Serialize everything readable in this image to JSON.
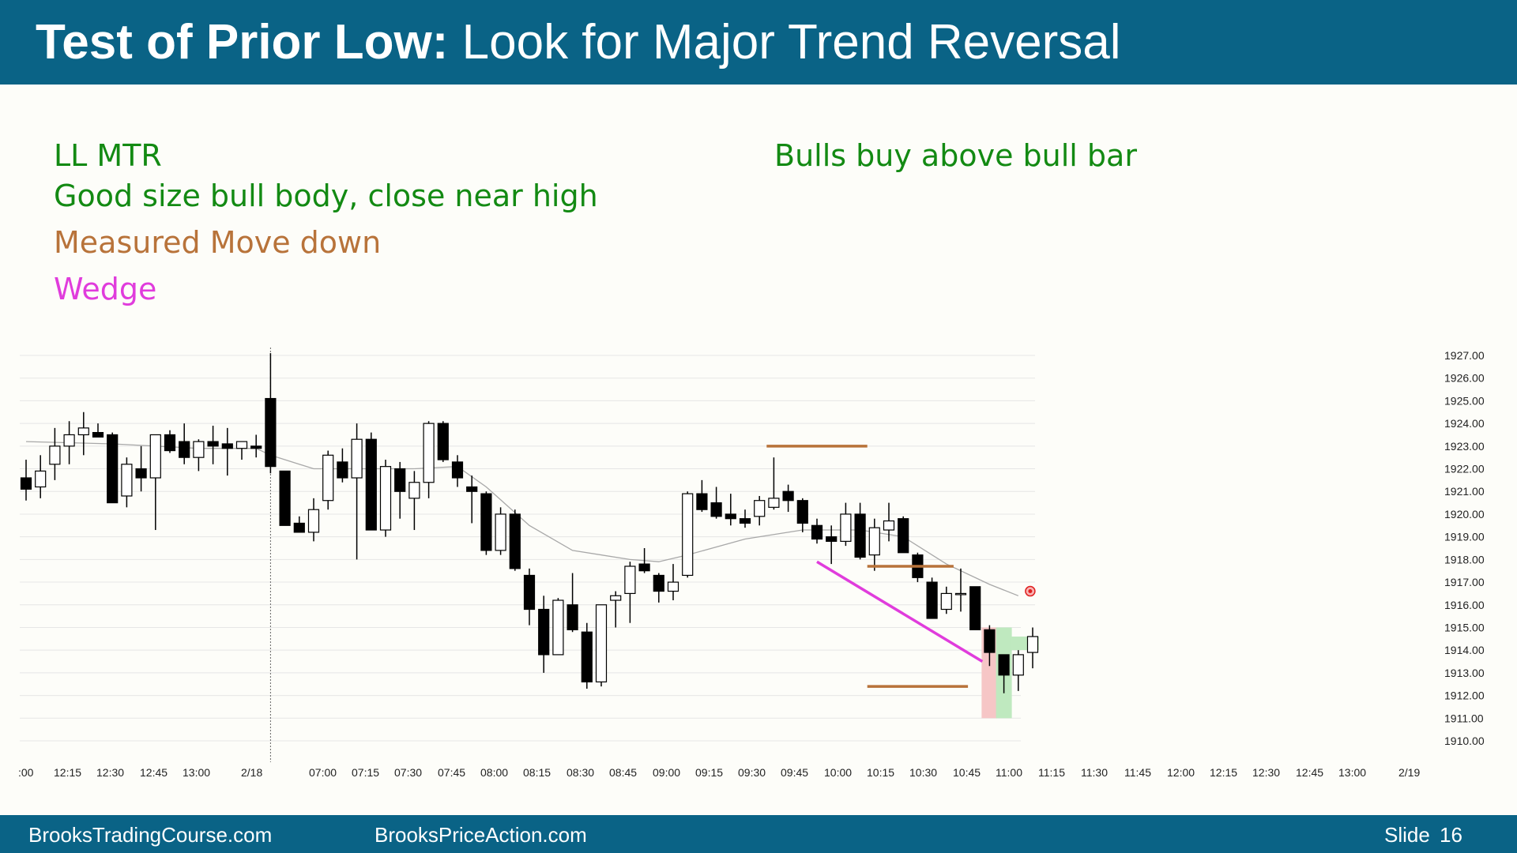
{
  "header": {
    "title_bold": "Test of Prior Low:",
    "title_rest": " Look for Major Trend Reversal"
  },
  "annotations": {
    "ll_mtr": "LL MTR",
    "bull_body": "Good size bull body, close near high",
    "measured_move": "Measured Move down",
    "wedge": "Wedge",
    "bulls_buy": "Bulls buy above bull bar"
  },
  "colors": {
    "header_bg": "#0a6386",
    "green_text": "#138a13",
    "brown": "#b8733a",
    "magenta": "#e03cdc",
    "ema": "#a8a8a8",
    "bear_highlight": "#f6c6c6",
    "bull_highlight": "#bfe9bf",
    "signal_dot": "#e02020"
  },
  "footer": {
    "site1": "BrooksTradingCourse.com",
    "site2": "BrooksPriceAction.com",
    "slide_label": "Slide",
    "slide_number": "16"
  },
  "chart_data": {
    "type": "candlestick",
    "y_ticks": [
      "1927.00",
      "1926.00",
      "1925.00",
      "1924.00",
      "1923.00",
      "1922.00",
      "1921.00",
      "1920.00",
      "1919.00",
      "1918.00",
      "1917.00",
      "1916.00",
      "1915.00",
      "1914.00",
      "1913.00",
      "1912.00",
      "1911.00",
      "1910.00"
    ],
    "ylim": [
      1910,
      1927
    ],
    "x_labels": [
      ":00",
      "12:15",
      "12:30",
      "12:45",
      "13:00",
      "2/18",
      "07:00",
      "07:15",
      "07:30",
      "07:45",
      "08:00",
      "08:15",
      "08:30",
      "08:45",
      "09:00",
      "09:15",
      "09:30",
      "09:45",
      "10:00",
      "10:15",
      "10:30",
      "10:45",
      "11:00",
      "11:15",
      "11:30",
      "11:45",
      "12:00",
      "12:15",
      "12:30",
      "12:45",
      "13:00",
      "2/19"
    ],
    "grid": "horizontal",
    "candles": [
      {
        "o": 1921.6,
        "h": 1922.4,
        "l": 1920.6,
        "c": 1921.1
      },
      {
        "o": 1921.2,
        "h": 1922.6,
        "l": 1920.7,
        "c": 1921.9
      },
      {
        "o": 1922.2,
        "h": 1923.8,
        "l": 1921.5,
        "c": 1923.0
      },
      {
        "o": 1923.0,
        "h": 1924.1,
        "l": 1922.2,
        "c": 1923.5
      },
      {
        "o": 1923.5,
        "h": 1924.5,
        "l": 1922.6,
        "c": 1923.8
      },
      {
        "o": 1923.6,
        "h": 1924.0,
        "l": 1923.4,
        "c": 1923.4
      },
      {
        "o": 1923.5,
        "h": 1923.6,
        "l": 1920.5,
        "c": 1920.5
      },
      {
        "o": 1920.8,
        "h": 1922.5,
        "l": 1920.3,
        "c": 1922.2
      },
      {
        "o": 1922.0,
        "h": 1923.0,
        "l": 1921.0,
        "c": 1921.6
      },
      {
        "o": 1921.6,
        "h": 1923.5,
        "l": 1919.3,
        "c": 1923.5
      },
      {
        "o": 1923.5,
        "h": 1923.7,
        "l": 1922.7,
        "c": 1922.8
      },
      {
        "o": 1923.2,
        "h": 1924.0,
        "l": 1922.2,
        "c": 1922.5
      },
      {
        "o": 1922.5,
        "h": 1923.3,
        "l": 1921.9,
        "c": 1923.2
      },
      {
        "o": 1923.2,
        "h": 1923.9,
        "l": 1922.2,
        "c": 1923.0
      },
      {
        "o": 1923.1,
        "h": 1923.8,
        "l": 1921.7,
        "c": 1922.9
      },
      {
        "o": 1922.9,
        "h": 1923.2,
        "l": 1922.4,
        "c": 1923.2
      },
      {
        "o": 1923.0,
        "h": 1923.5,
        "l": 1922.5,
        "c": 1922.9
      },
      {
        "o": 1925.1,
        "h": 1927.1,
        "l": 1921.8,
        "c": 1922.1
      },
      {
        "o": 1921.9,
        "h": 1921.9,
        "l": 1919.5,
        "c": 1919.5
      },
      {
        "o": 1919.6,
        "h": 1919.9,
        "l": 1919.2,
        "c": 1919.2
      },
      {
        "o": 1919.2,
        "h": 1920.7,
        "l": 1918.8,
        "c": 1920.2
      },
      {
        "o": 1920.6,
        "h": 1922.8,
        "l": 1920.2,
        "c": 1922.6
      },
      {
        "o": 1922.3,
        "h": 1922.9,
        "l": 1921.4,
        "c": 1921.6
      },
      {
        "o": 1921.6,
        "h": 1924.0,
        "l": 1918.0,
        "c": 1923.3
      },
      {
        "o": 1923.3,
        "h": 1923.6,
        "l": 1919.3,
        "c": 1919.3
      },
      {
        "o": 1919.3,
        "h": 1922.4,
        "l": 1919.0,
        "c": 1922.1
      },
      {
        "o": 1922.0,
        "h": 1922.3,
        "l": 1919.8,
        "c": 1921.0
      },
      {
        "o": 1920.7,
        "h": 1921.9,
        "l": 1919.3,
        "c": 1921.4
      },
      {
        "o": 1921.4,
        "h": 1924.1,
        "l": 1920.7,
        "c": 1924.0
      },
      {
        "o": 1924.0,
        "h": 1924.1,
        "l": 1922.3,
        "c": 1922.4
      },
      {
        "o": 1922.3,
        "h": 1922.6,
        "l": 1921.2,
        "c": 1921.6
      },
      {
        "o": 1921.2,
        "h": 1921.7,
        "l": 1919.6,
        "c": 1921.0
      },
      {
        "o": 1920.9,
        "h": 1921.0,
        "l": 1918.2,
        "c": 1918.4
      },
      {
        "o": 1918.4,
        "h": 1920.3,
        "l": 1918.2,
        "c": 1920.0
      },
      {
        "o": 1920.0,
        "h": 1920.2,
        "l": 1917.5,
        "c": 1917.6
      },
      {
        "o": 1917.3,
        "h": 1917.6,
        "l": 1915.1,
        "c": 1915.8
      },
      {
        "o": 1915.8,
        "h": 1916.4,
        "l": 1913.0,
        "c": 1913.8
      },
      {
        "o": 1913.8,
        "h": 1916.3,
        "l": 1913.8,
        "c": 1916.2
      },
      {
        "o": 1916.0,
        "h": 1917.4,
        "l": 1914.8,
        "c": 1914.9
      },
      {
        "o": 1914.8,
        "h": 1915.2,
        "l": 1912.3,
        "c": 1912.6
      },
      {
        "o": 1912.6,
        "h": 1916.0,
        "l": 1912.4,
        "c": 1916.0
      },
      {
        "o": 1916.2,
        "h": 1916.6,
        "l": 1915.0,
        "c": 1916.4
      },
      {
        "o": 1916.5,
        "h": 1917.9,
        "l": 1915.2,
        "c": 1917.7
      },
      {
        "o": 1917.8,
        "h": 1918.5,
        "l": 1917.4,
        "c": 1917.5
      },
      {
        "o": 1917.3,
        "h": 1917.4,
        "l": 1916.1,
        "c": 1916.6
      },
      {
        "o": 1916.6,
        "h": 1917.8,
        "l": 1916.2,
        "c": 1917.0
      },
      {
        "o": 1917.3,
        "h": 1921.0,
        "l": 1917.2,
        "c": 1920.9
      },
      {
        "o": 1920.9,
        "h": 1921.5,
        "l": 1920.1,
        "c": 1920.2
      },
      {
        "o": 1920.5,
        "h": 1921.2,
        "l": 1919.8,
        "c": 1919.9
      },
      {
        "o": 1920.0,
        "h": 1920.9,
        "l": 1919.5,
        "c": 1919.8
      },
      {
        "o": 1919.8,
        "h": 1920.2,
        "l": 1919.4,
        "c": 1919.6
      },
      {
        "o": 1919.9,
        "h": 1920.8,
        "l": 1919.5,
        "c": 1920.6
      },
      {
        "o": 1920.3,
        "h": 1922.5,
        "l": 1920.2,
        "c": 1920.7
      },
      {
        "o": 1921.0,
        "h": 1921.3,
        "l": 1920.1,
        "c": 1920.6
      },
      {
        "o": 1920.6,
        "h": 1920.7,
        "l": 1919.2,
        "c": 1919.6
      },
      {
        "o": 1919.5,
        "h": 1919.8,
        "l": 1918.7,
        "c": 1918.9
      },
      {
        "o": 1919.0,
        "h": 1919.5,
        "l": 1917.8,
        "c": 1918.8
      },
      {
        "o": 1918.8,
        "h": 1920.5,
        "l": 1918.6,
        "c": 1920.0
      },
      {
        "o": 1920.0,
        "h": 1920.5,
        "l": 1918.0,
        "c": 1918.1
      },
      {
        "o": 1918.2,
        "h": 1919.8,
        "l": 1917.5,
        "c": 1919.4
      },
      {
        "o": 1919.3,
        "h": 1920.5,
        "l": 1918.8,
        "c": 1919.7
      },
      {
        "o": 1919.8,
        "h": 1919.9,
        "l": 1918.3,
        "c": 1918.3
      },
      {
        "o": 1918.2,
        "h": 1918.3,
        "l": 1917.0,
        "c": 1917.2
      },
      {
        "o": 1917.0,
        "h": 1917.2,
        "l": 1915.4,
        "c": 1915.4
      },
      {
        "o": 1915.8,
        "h": 1916.8,
        "l": 1915.6,
        "c": 1916.5
      },
      {
        "o": 1916.5,
        "h": 1917.6,
        "l": 1915.7,
        "c": 1916.5
      },
      {
        "o": 1916.8,
        "h": 1916.8,
        "l": 1914.9,
        "c": 1914.9
      },
      {
        "o": 1914.9,
        "h": 1915.1,
        "l": 1913.3,
        "c": 1913.9
      },
      {
        "o": 1913.8,
        "h": 1913.8,
        "l": 1912.1,
        "c": 1912.9
      },
      {
        "o": 1912.9,
        "h": 1914.0,
        "l": 1912.2,
        "c": 1913.8
      },
      {
        "o": 1913.9,
        "h": 1915.0,
        "l": 1913.2,
        "c": 1914.6
      }
    ],
    "ema": [
      {
        "i": 0,
        "v": 1923.2
      },
      {
        "i": 6,
        "v": 1923.1
      },
      {
        "i": 12,
        "v": 1922.9
      },
      {
        "i": 16,
        "v": 1922.9
      },
      {
        "i": 17,
        "v": 1922.6
      },
      {
        "i": 20,
        "v": 1922.0
      },
      {
        "i": 24,
        "v": 1922.0
      },
      {
        "i": 27,
        "v": 1922.0
      },
      {
        "i": 30,
        "v": 1922.1
      },
      {
        "i": 32,
        "v": 1921.2
      },
      {
        "i": 35,
        "v": 1919.5
      },
      {
        "i": 38,
        "v": 1918.4
      },
      {
        "i": 42,
        "v": 1918.0
      },
      {
        "i": 44,
        "v": 1917.9
      },
      {
        "i": 46,
        "v": 1918.2
      },
      {
        "i": 50,
        "v": 1918.9
      },
      {
        "i": 54,
        "v": 1919.3
      },
      {
        "i": 58,
        "v": 1919.3
      },
      {
        "i": 61,
        "v": 1919.0
      },
      {
        "i": 64,
        "v": 1917.8
      },
      {
        "i": 67,
        "v": 1916.9
      },
      {
        "i": 69,
        "v": 1916.4
      }
    ],
    "measured_move_lines": [
      {
        "i0": 51.5,
        "i1": 58.5,
        "price": 1923.0
      },
      {
        "i0": 58.5,
        "i1": 64.5,
        "price": 1917.7
      },
      {
        "i0": 58.5,
        "i1": 65.5,
        "price": 1912.4
      }
    ],
    "wedge_line": {
      "i0": 55,
      "p0": 1917.9,
      "i1": 66.5,
      "p1": 1913.5
    },
    "highlights": [
      {
        "i": 67,
        "type": "bear",
        "top": 1915.0,
        "bottom": 1911.0
      },
      {
        "i": 68,
        "type": "bull",
        "top": 1915.0,
        "bottom": 1911.0
      },
      {
        "i": 69,
        "type": "bull",
        "top": 1914.6,
        "bottom": 1914.0
      }
    ],
    "signal_dot": {
      "i": 69.5,
      "price": 1916.6
    },
    "day_separator_index": 17
  }
}
